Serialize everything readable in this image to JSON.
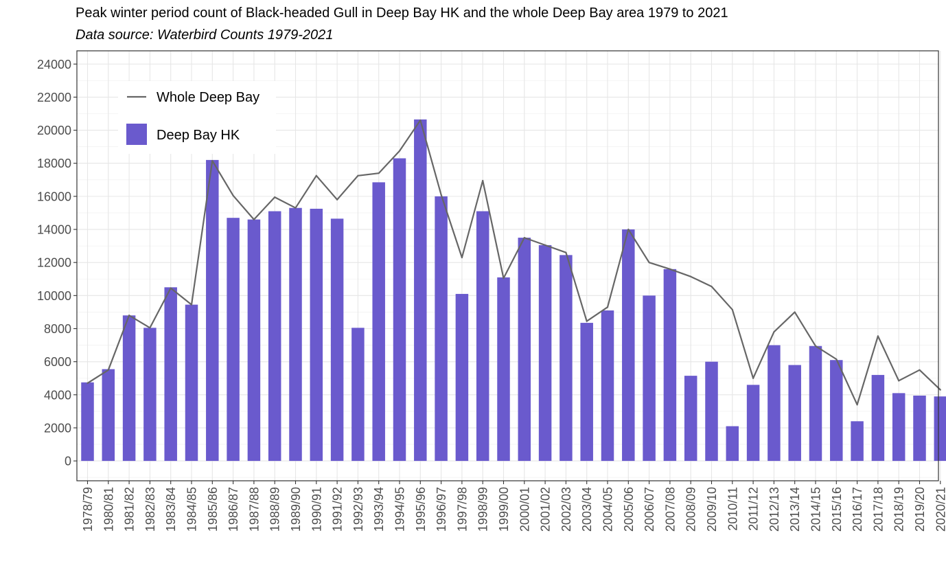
{
  "chart_data": {
    "type": "bar",
    "title": "Peak winter period count of Black-headed Gull in Deep Bay HK and the whole Deep Bay area 1979 to 2021",
    "subtitle": "Data source: Waterbird Counts 1979-2021",
    "xlabel": "",
    "ylabel": "",
    "ylim": [
      -1200,
      24800
    ],
    "yticks": [
      0,
      2000,
      4000,
      6000,
      8000,
      10000,
      12000,
      14000,
      16000,
      18000,
      20000,
      22000,
      24000
    ],
    "grid": true,
    "legend_position": "top-left",
    "categories": [
      "1978/79",
      "1980/81",
      "1981/82",
      "1982/83",
      "1983/84",
      "1984/85",
      "1985/86",
      "1986/87",
      "1987/88",
      "1988/89",
      "1989/90",
      "1990/91",
      "1991/92",
      "1992/93",
      "1993/94",
      "1994/95",
      "1995/96",
      "1996/97",
      "1997/98",
      "1998/99",
      "1999/00",
      "2000/01",
      "2001/02",
      "2002/03",
      "2003/04",
      "2004/05",
      "2005/06",
      "2006/07",
      "2007/08",
      "2008/09",
      "2009/10",
      "2010/11",
      "2011/12",
      "2012/13",
      "2013/14",
      "2014/15",
      "2015/16",
      "2016/17",
      "2017/18",
      "2018/19",
      "2019/20",
      "2020/21"
    ],
    "series": [
      {
        "name": "Deep Bay HK",
        "kind": "bar",
        "color": "#6A5ACD",
        "values": [
          4750,
          5550,
          8800,
          8050,
          10500,
          9450,
          18200,
          14700,
          14600,
          15100,
          15300,
          15250,
          14650,
          8050,
          16850,
          18300,
          20650,
          16000,
          10100,
          15100,
          11100,
          13500,
          13050,
          12450,
          8350,
          9100,
          14000,
          10000,
          11600,
          5150,
          6000,
          2100,
          4600,
          7000,
          5800,
          6950,
          6100,
          2400,
          5200,
          4100,
          3950,
          3900
        ]
      },
      {
        "name": "Whole Deep Bay",
        "kind": "line",
        "color": "#666666",
        "values": [
          4700,
          5500,
          8800,
          8050,
          10450,
          9450,
          18150,
          16050,
          14600,
          15950,
          15300,
          17250,
          15800,
          17250,
          17400,
          18750,
          20600,
          16100,
          12300,
          16950,
          11050,
          13500,
          13050,
          12600,
          8450,
          9300,
          14000,
          12000,
          11600,
          11150,
          10550,
          9150,
          5000,
          7800,
          9000,
          6950,
          6150,
          3400,
          7550,
          4850,
          5500,
          4300
        ]
      }
    ]
  }
}
